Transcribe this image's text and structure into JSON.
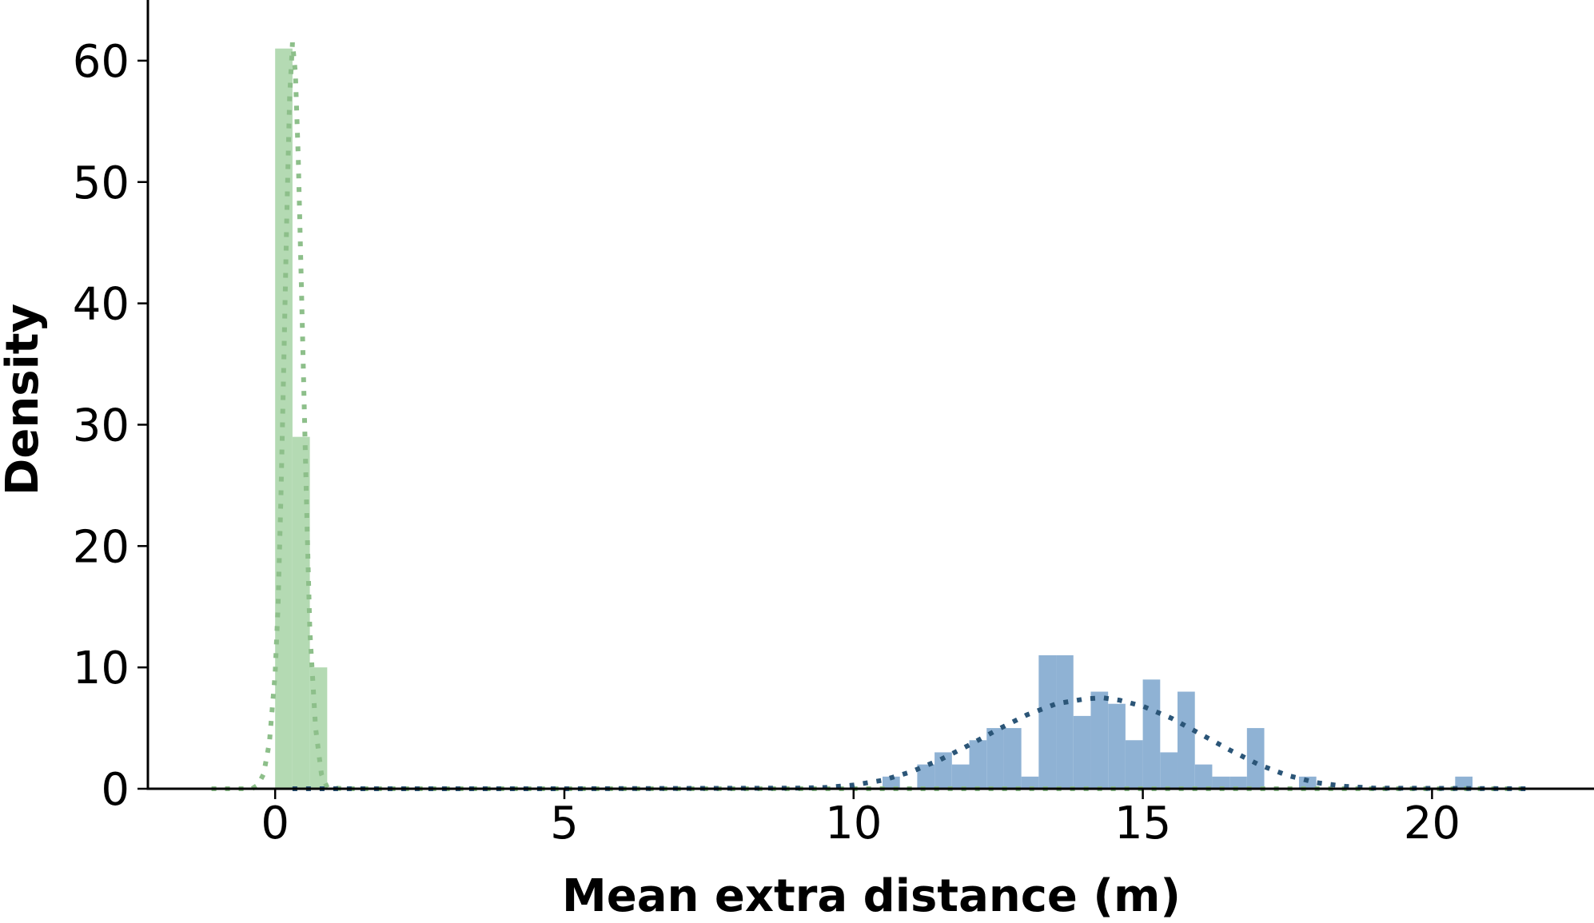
{
  "chart_data": {
    "type": "bar",
    "xlabel": "Mean extra distance (m)",
    "ylabel": "Density",
    "xlim": [
      -2.2,
      22.8
    ],
    "ylim": [
      0,
      65
    ],
    "xticks": [
      "0",
      "5",
      "10",
      "15",
      "20"
    ],
    "xtick_values": [
      0,
      5,
      10,
      15,
      20
    ],
    "yticks": [
      "0",
      "10",
      "20",
      "30",
      "40",
      "50",
      "60"
    ],
    "ytick_values": [
      0,
      10,
      20,
      30,
      40,
      50,
      60
    ],
    "grid": false,
    "legend": "none",
    "series": [
      {
        "kind": "histogram",
        "color": "#b4dab3",
        "bins": [
          {
            "x0": 0.0,
            "x1": 0.3,
            "value": 61
          },
          {
            "x0": 0.3,
            "x1": 0.6,
            "value": 29
          },
          {
            "x0": 0.6,
            "x1": 0.9,
            "value": 10
          }
        ]
      },
      {
        "kind": "histogram",
        "color": "#8fb2d4",
        "bins": [
          {
            "x0": 10.5,
            "x1": 10.8,
            "value": 1
          },
          {
            "x0": 11.1,
            "x1": 11.4,
            "value": 2
          },
          {
            "x0": 11.4,
            "x1": 11.7,
            "value": 3
          },
          {
            "x0": 11.7,
            "x1": 12.0,
            "value": 2
          },
          {
            "x0": 12.0,
            "x1": 12.3,
            "value": 4
          },
          {
            "x0": 12.3,
            "x1": 12.6,
            "value": 5
          },
          {
            "x0": 12.6,
            "x1": 12.9,
            "value": 5
          },
          {
            "x0": 12.9,
            "x1": 13.2,
            "value": 1
          },
          {
            "x0": 13.2,
            "x1": 13.5,
            "value": 11
          },
          {
            "x0": 13.5,
            "x1": 13.8,
            "value": 11
          },
          {
            "x0": 13.8,
            "x1": 14.1,
            "value": 6
          },
          {
            "x0": 14.1,
            "x1": 14.4,
            "value": 8
          },
          {
            "x0": 14.4,
            "x1": 14.7,
            "value": 7
          },
          {
            "x0": 14.7,
            "x1": 15.0,
            "value": 4
          },
          {
            "x0": 15.0,
            "x1": 15.3,
            "value": 9
          },
          {
            "x0": 15.3,
            "x1": 15.6,
            "value": 3
          },
          {
            "x0": 15.6,
            "x1": 15.9,
            "value": 8
          },
          {
            "x0": 15.9,
            "x1": 16.2,
            "value": 2
          },
          {
            "x0": 16.2,
            "x1": 16.5,
            "value": 1
          },
          {
            "x0": 16.5,
            "x1": 16.8,
            "value": 1
          },
          {
            "x0": 16.8,
            "x1": 17.1,
            "value": 5
          },
          {
            "x0": 17.7,
            "x1": 18.0,
            "value": 1
          },
          {
            "x0": 20.4,
            "x1": 20.7,
            "value": 1
          }
        ]
      },
      {
        "kind": "density-curve",
        "color": "#8dbf8a",
        "x": [
          -1.1,
          -0.4,
          -0.3,
          -0.2,
          -0.1,
          0.0,
          0.05,
          0.1,
          0.15,
          0.2,
          0.25,
          0.3,
          0.35,
          0.4,
          0.45,
          0.5,
          0.55,
          0.6,
          0.7,
          0.8,
          0.9,
          1.2,
          3,
          6,
          9,
          12,
          15,
          18,
          21.7
        ],
        "y": [
          0,
          0,
          0.3,
          1.2,
          3.8,
          9.5,
          15,
          24,
          35,
          47,
          57,
          61.5,
          59,
          52,
          42,
          32,
          22,
          13,
          5,
          1.2,
          0.1,
          0,
          0,
          0,
          0,
          0,
          0,
          0,
          0
        ]
      },
      {
        "kind": "density-curve",
        "color": "#2b5577",
        "x": [
          0.3,
          5,
          9,
          9.5,
          10,
          10.5,
          11,
          11.5,
          12,
          12.5,
          13,
          13.5,
          14,
          14.3,
          14.6,
          15,
          15.5,
          16,
          16.5,
          17,
          17.5,
          18,
          18.5,
          19,
          21.7
        ],
        "y": [
          0,
          0,
          0.05,
          0.1,
          0.3,
          0.7,
          1.4,
          2.4,
          3.6,
          4.9,
          6.1,
          7.0,
          7.4,
          7.5,
          7.3,
          6.8,
          5.8,
          4.5,
          3.2,
          2.0,
          1.1,
          0.5,
          0.2,
          0.05,
          0
        ]
      }
    ]
  }
}
